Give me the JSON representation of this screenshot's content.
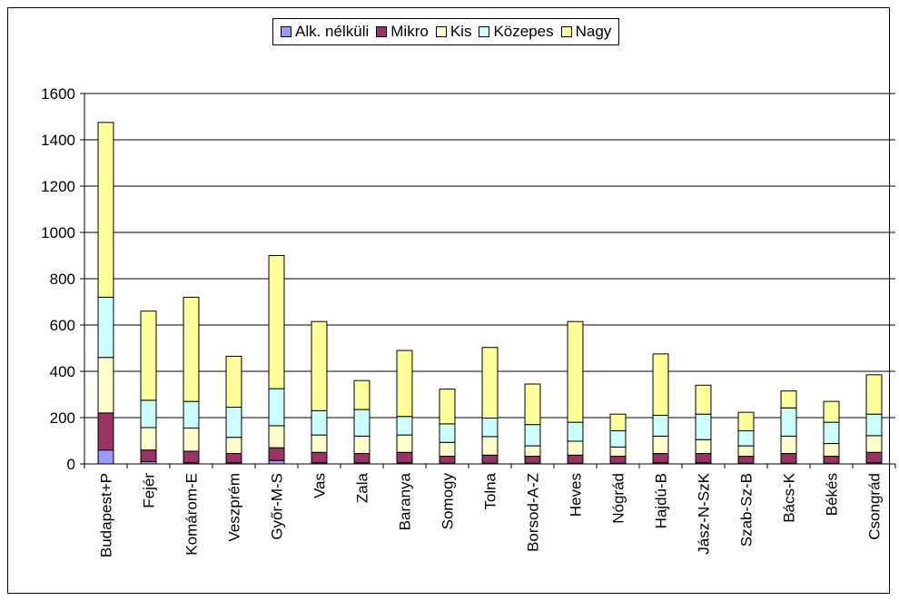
{
  "chart_data": {
    "type": "bar",
    "stacked": true,
    "title": "",
    "xlabel": "",
    "ylabel": "",
    "ylim": [
      0,
      1600
    ],
    "yticks": [
      0,
      200,
      400,
      600,
      800,
      1000,
      1200,
      1400,
      1600
    ],
    "grid": true,
    "legend_position": "top",
    "categories": [
      "Budapest+P",
      "Fejér",
      "Komárom-E",
      "Veszprém",
      "Győr-M-S",
      "Vas",
      "Zala",
      "Baranya",
      "Somogy",
      "Tolna",
      "Borsod-A-Z",
      "Heves",
      "Nógrád",
      "Hajdú-B",
      "Jász-N-SzK",
      "Szab-Sz-B",
      "Bács-K",
      "Békés",
      "Csongrád"
    ],
    "series": [
      {
        "name": "Alk. nélküli",
        "color": "#9999ff",
        "values": [
          60,
          10,
          5,
          5,
          15,
          5,
          5,
          5,
          3,
          3,
          3,
          3,
          3,
          5,
          5,
          3,
          3,
          3,
          5
        ]
      },
      {
        "name": "Mikro",
        "color": "#993366",
        "values": [
          160,
          50,
          50,
          40,
          55,
          45,
          40,
          45,
          30,
          35,
          30,
          35,
          30,
          40,
          40,
          30,
          42,
          30,
          45
        ]
      },
      {
        "name": "Kis",
        "color": "#ffffcc",
        "values": [
          240,
          97,
          100,
          70,
          95,
          75,
          75,
          75,
          60,
          80,
          45,
          60,
          40,
          75,
          60,
          45,
          75,
          55,
          72
        ]
      },
      {
        "name": "Közepes",
        "color": "#ccffff",
        "values": [
          260,
          118,
          115,
          130,
          160,
          105,
          115,
          80,
          80,
          80,
          92,
          82,
          70,
          90,
          110,
          65,
          122,
          92,
          93
        ]
      },
      {
        "name": "Nagy",
        "color": "#ffff99",
        "values": [
          755,
          385,
          450,
          220,
          575,
          385,
          125,
          285,
          150,
          305,
          175,
          435,
          72,
          265,
          125,
          80,
          73,
          90,
          170
        ]
      }
    ]
  }
}
